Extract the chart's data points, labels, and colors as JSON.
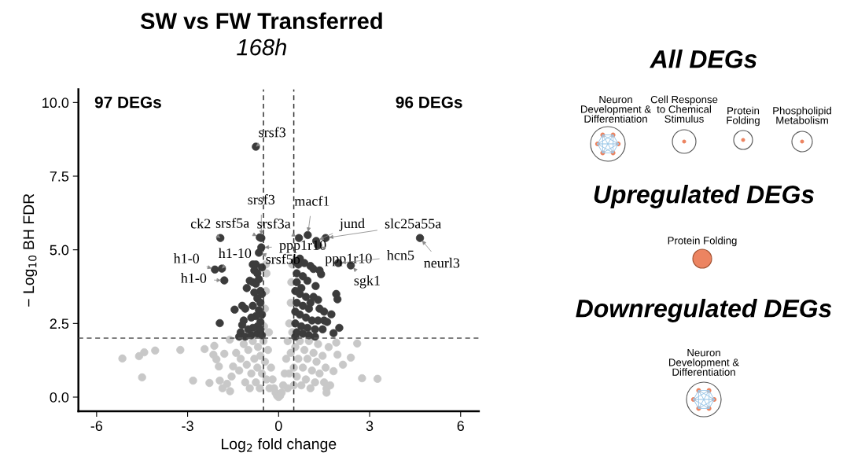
{
  "chart_data": [
    {
      "type": "scatter",
      "title": "SW vs FW Transferred",
      "subtitle": "168h",
      "xlabel": "Log$_{2}$ fold change",
      "ylabel": "− Log$_{10}$ BH FDR",
      "xlim": [
        -6.6,
        6.6
      ],
      "xticks": [
        -6,
        -3,
        0,
        3,
        6
      ],
      "ylim": [
        -0.48,
        10.45
      ],
      "yticks": [
        {
          "value": 0,
          "label": "0.0"
        },
        {
          "value": 2.5,
          "label": "2.5"
        },
        {
          "value": 5,
          "label": "5.0"
        },
        {
          "value": 7.5,
          "label": "7.5"
        },
        {
          "value": 10,
          "label": "10.0"
        }
      ],
      "grid": false,
      "legend": false,
      "marker": "circle",
      "ref_lines": [
        {
          "axis": "x",
          "value": -0.5,
          "color": "#333333",
          "line_style": "dashed"
        },
        {
          "axis": "x",
          "value": 0.5,
          "color": "#333333",
          "line_style": "dashed"
        },
        {
          "axis": "y",
          "value": 2,
          "color": "#555555",
          "line_style": "dashed"
        }
      ],
      "series": [
        {
          "color": "#c8c8c8",
          "x": [
            -5.15,
            -4.6,
            -4.43,
            -4.07,
            -3.24,
            -4.5,
            -2.82,
            -2.44,
            -2.28,
            -2.12,
            -2.15,
            -2.05,
            -1.97,
            -1.79,
            -1.61,
            -1.94,
            -1.5,
            -1.85,
            -1.7,
            -1.55,
            -1.4,
            -1.3,
            -1.25,
            -1.15,
            -1.1,
            -1.05,
            -1.0,
            -0.95,
            -0.9,
            -0.85,
            -0.8,
            -0.75,
            -0.7,
            -0.68,
            -0.62,
            -0.6,
            -0.55,
            -0.5,
            -0.48,
            -0.45,
            -0.42,
            -0.4,
            -0.42,
            -0.45,
            -0.4,
            -0.35,
            -0.32,
            -0.3,
            -0.25,
            -0.2,
            -0.15,
            -0.1,
            -0.05,
            0.0,
            0.05,
            0.1,
            0.15,
            0.2,
            0.25,
            0.3,
            0.3,
            0.35,
            0.35,
            0.4,
            0.4,
            0.42,
            0.45,
            0.45,
            0.5,
            0.5,
            0.55,
            0.6,
            0.65,
            0.7,
            0.75,
            0.8,
            0.85,
            0.9,
            0.95,
            1.0,
            1.05,
            1.1,
            1.15,
            1.2,
            1.25,
            1.3,
            1.35,
            1.45,
            1.5,
            1.55,
            1.65,
            1.7,
            2.59,
            2.38,
            2.12,
            2.75,
            3.26,
            1.9,
            1.81,
            1.94,
            1.58,
            1.58,
            -1.6
          ],
          "values": [
            1.31,
            1.39,
            1.52,
            1.58,
            1.6,
            0.67,
            0.56,
            1.63,
            0.48,
            1.74,
            1.44,
            1.28,
            1.04,
            1.47,
            1.95,
            0.56,
            1.04,
            0.3,
            0.45,
            0.7,
            1.5,
            0.9,
            1.3,
            1.8,
            0.5,
            1.1,
            1.6,
            0.3,
            0.8,
            1.9,
            1.3,
            0.5,
            1.0,
            1.7,
            0.3,
            1.4,
            0.8,
            1.9,
            2.4,
            3.0,
            3.6,
            4.2,
            4.5,
            1.2,
            0.6,
            1.6,
            2.2,
            0.3,
            1.0,
            0.6,
            0.3,
            0.15,
            0.05,
            0.0,
            0.05,
            0.15,
            0.4,
            0.8,
            1.3,
            1.9,
            0.3,
            2.5,
            0.8,
            3.2,
            1.5,
            3.9,
            4.5,
            2.2,
            1.0,
            0.4,
            1.7,
            0.7,
            1.3,
            1.9,
            0.4,
            1.0,
            1.6,
            0.6,
            1.3,
            1.9,
            0.3,
            0.9,
            1.5,
            0.5,
            1.2,
            1.8,
            0.8,
            1.4,
            0.5,
            1.0,
            1.7,
            0.4,
            1.82,
            1.34,
            1.1,
            0.64,
            0.62,
            1.85,
            0.88,
            1.44,
            0.29,
            0.15,
            0.2
          ]
        },
        {
          "color": "#3c3c3c",
          "x": [
            -0.75,
            -0.57,
            -0.62,
            -1.92,
            -0.57,
            -0.65,
            -2.1,
            -1.87,
            -1.79,
            0.96,
            0.67,
            1.24,
            1.55,
            1.3,
            4.66,
            1.97,
            2.38,
            -1.45,
            -1.94,
            -0.85,
            -0.75,
            -0.8,
            -0.7,
            -0.95,
            -0.85,
            -0.75,
            -0.6,
            -0.8,
            -0.7,
            -0.6,
            -0.85,
            -1.2,
            -1.1,
            -0.65,
            -0.55,
            -0.75,
            -0.9,
            -1.15,
            -1.2,
            -0.6,
            -0.7,
            -0.85,
            -1.0,
            -1.25,
            -1.3,
            -1.1,
            -0.9,
            -0.7,
            -0.55,
            -0.6,
            -0.55,
            -0.65,
            -1.05,
            -0.55,
            1.9,
            1.94,
            1.74,
            2.0,
            1.81,
            1.22,
            1.4,
            1.35,
            0.55,
            0.7,
            0.85,
            1.05,
            1.15,
            0.6,
            0.8,
            0.6,
            0.95,
            0.55,
            0.7,
            0.9,
            1.15,
            1.3,
            0.6,
            0.8,
            1.0,
            1.35,
            1.5,
            0.55,
            0.7,
            0.9,
            1.1,
            1.3,
            1.5,
            1.6,
            0.55,
            0.75,
            0.95,
            1.2,
            1.45,
            0.6,
            0.8,
            1.0,
            1.2,
            0.55,
            0.65,
            0.75,
            1.05
          ],
          "values": [
            8.5,
            5.4,
            5.42,
            5.4,
            5.08,
            4.9,
            4.33,
            4.36,
            3.96,
            5.5,
            5.4,
            5.3,
            5.4,
            5.15,
            5.4,
            4.55,
            4.47,
            2.97,
            2.51,
            4.5,
            4.5,
            4.3,
            4.2,
            3.95,
            3.9,
            3.85,
            3.6,
            3.55,
            3.35,
            3.2,
            3.1,
            3.1,
            3.0,
            2.95,
            2.8,
            2.75,
            2.7,
            2.6,
            2.45,
            2.55,
            2.4,
            2.35,
            2.3,
            2.2,
            2.05,
            2.05,
            2.1,
            2.15,
            2.1,
            2.3,
            3.5,
            4.0,
            3.7,
            4.4,
            3.5,
            3.32,
            2.81,
            2.35,
            2.17,
            3.77,
            4.17,
            4.3,
            4.6,
            4.7,
            4.55,
            4.45,
            4.35,
            4.2,
            4.1,
            3.9,
            3.95,
            3.6,
            3.5,
            3.4,
            3.4,
            3.3,
            3.2,
            3.1,
            3.0,
            3.0,
            2.9,
            2.9,
            2.8,
            2.7,
            2.6,
            2.6,
            2.6,
            2.55,
            2.5,
            2.4,
            2.35,
            2.3,
            2.3,
            2.2,
            2.15,
            2.1,
            2.05,
            2.05,
            4.5,
            3.7,
            3.2
          ]
        }
      ],
      "annotations": [
        "97 DEGs",
        "96 DEGs",
        {
          "text": "srsf3",
          "x": -0.75,
          "y": 8.5
        },
        {
          "text": "srsf3",
          "x": -0.57,
          "y": 5.4
        },
        {
          "text": "ck2",
          "x": -1.92,
          "y": 5.4
        },
        {
          "text": "srsf5a",
          "x": -0.62,
          "y": 5.42
        },
        {
          "text": "srsf3a",
          "x": 0.67,
          "y": 5.4
        },
        {
          "text": "ppp1r10",
          "x": -0.57,
          "y": 5.08
        },
        {
          "text": "srsf5b",
          "x": -0.65,
          "y": 4.9
        },
        {
          "text": "h1-0",
          "x": -2.1,
          "y": 4.33
        },
        {
          "text": "h1-10",
          "x": -1.87,
          "y": 4.36
        },
        {
          "text": "h1-0",
          "x": -1.79,
          "y": 3.96
        },
        {
          "text": "macf1",
          "x": 0.96,
          "y": 5.5
        },
        {
          "text": "jund",
          "x": 1.24,
          "y": 5.3
        },
        {
          "text": "slc25a55a",
          "x": 1.55,
          "y": 5.4
        },
        {
          "text": "ppp1r10",
          "x": 1.3,
          "y": 5.15
        },
        {
          "text": "neurl3",
          "x": 4.66,
          "y": 5.4
        },
        {
          "text": "hcn5",
          "x": 1.97,
          "y": 4.55
        },
        {
          "text": "sgk1",
          "x": 2.38,
          "y": 4.47
        }
      ]
    },
    {
      "type": "other",
      "annotations": [
        "All DEGs",
        "Neuron\nDevelopment &\nDifferentiation",
        "Cell Response\nto Chemical\nStimulus",
        "Protein\nFolding",
        "Phospholipid\nMetabolism",
        "Upregulated DEGs",
        "Protein Folding",
        "Downregulated DEGs",
        "Neuron\nDevelopment &\nDifferentiation"
      ]
    }
  ]
}
